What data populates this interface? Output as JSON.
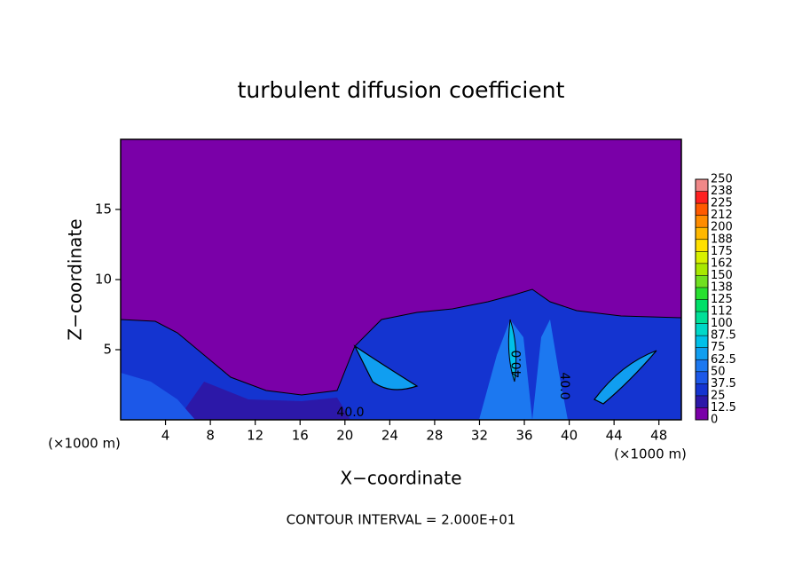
{
  "chart_data": {
    "type": "contour",
    "title": "turbulent diffusion coefficient",
    "xlabel": "X−coordinate",
    "ylabel": "Z−coordinate",
    "axis_unit": "(×1000 m)",
    "footnote": "CONTOUR INTERVAL = 2.000E+01",
    "contour_labels": [
      "40.0",
      "40.0",
      "40.0"
    ],
    "xlim": [
      0,
      50
    ],
    "xticks": [
      4,
      8,
      12,
      16,
      20,
      24,
      28,
      32,
      36,
      40,
      44,
      48
    ],
    "ylim": [
      0,
      20
    ],
    "yticks": [
      5,
      10,
      15
    ],
    "colorbar": {
      "levels": [
        0,
        12.5,
        25,
        37.5,
        50,
        62.5,
        75,
        87.5,
        100,
        112,
        125,
        138,
        150,
        162,
        175,
        188,
        200,
        212,
        225,
        238,
        250
      ],
      "colors": [
        "#7a00a8",
        "#2c18a8",
        "#1434d0",
        "#1c58e8",
        "#1c78f0",
        "#109ef0",
        "#00c0e8",
        "#00d8c8",
        "#00e098",
        "#00e068",
        "#28e030",
        "#70e020",
        "#a8e800",
        "#d8f000",
        "#ffe000",
        "#ffb800",
        "#ff8c00",
        "#ff5a00",
        "#ff2020",
        "#f08888"
      ]
    }
  }
}
